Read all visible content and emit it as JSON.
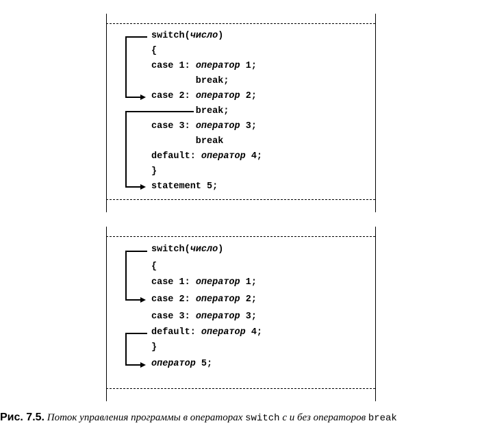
{
  "figure1": {
    "lines": [
      {
        "pre": "switch(",
        "em": "число",
        "post": ")"
      },
      {
        "pre": "{",
        "em": "",
        "post": ""
      },
      {
        "pre": "case 1: ",
        "em": "оператор",
        "post": " 1;"
      },
      {
        "pre": "        break;",
        "em": "",
        "post": ""
      },
      {
        "pre": "case 2: ",
        "em": "оператор",
        "post": " 2;"
      },
      {
        "pre": "        break;",
        "em": "",
        "post": ""
      },
      {
        "pre": "case 3: ",
        "em": "оператор",
        "post": " 3;"
      },
      {
        "pre": "        break",
        "em": "",
        "post": ""
      },
      {
        "pre": "default: ",
        "em": "оператор",
        "post": " 4;"
      },
      {
        "pre": "}",
        "em": "",
        "post": ""
      },
      {
        "pre": "statement 5;",
        "em": "",
        "post": ""
      }
    ]
  },
  "figure2": {
    "lines": [
      {
        "pre": "switch(",
        "em": "число",
        "post": ")"
      },
      {
        "pre": "{",
        "em": "",
        "post": ""
      },
      {
        "pre": "case 1: ",
        "em": "оператор",
        "post": " 1;"
      },
      {
        "pre": "case 2: ",
        "em": "оператор",
        "post": " 2;"
      },
      {
        "pre": "case 3: ",
        "em": "оператор",
        "post": " 3;"
      },
      {
        "pre": "default: ",
        "em": "оператор",
        "post": " 4;"
      },
      {
        "pre": "}",
        "em": "",
        "post": ""
      },
      {
        "pre": "",
        "em": "оператор",
        "post": " 5;"
      }
    ]
  },
  "caption": {
    "label": "Рис. 7.5.",
    "text1": "Поток управления программы в операторах",
    "kw1": "switch",
    "text2": "с и без операторов",
    "kw2": "break"
  }
}
